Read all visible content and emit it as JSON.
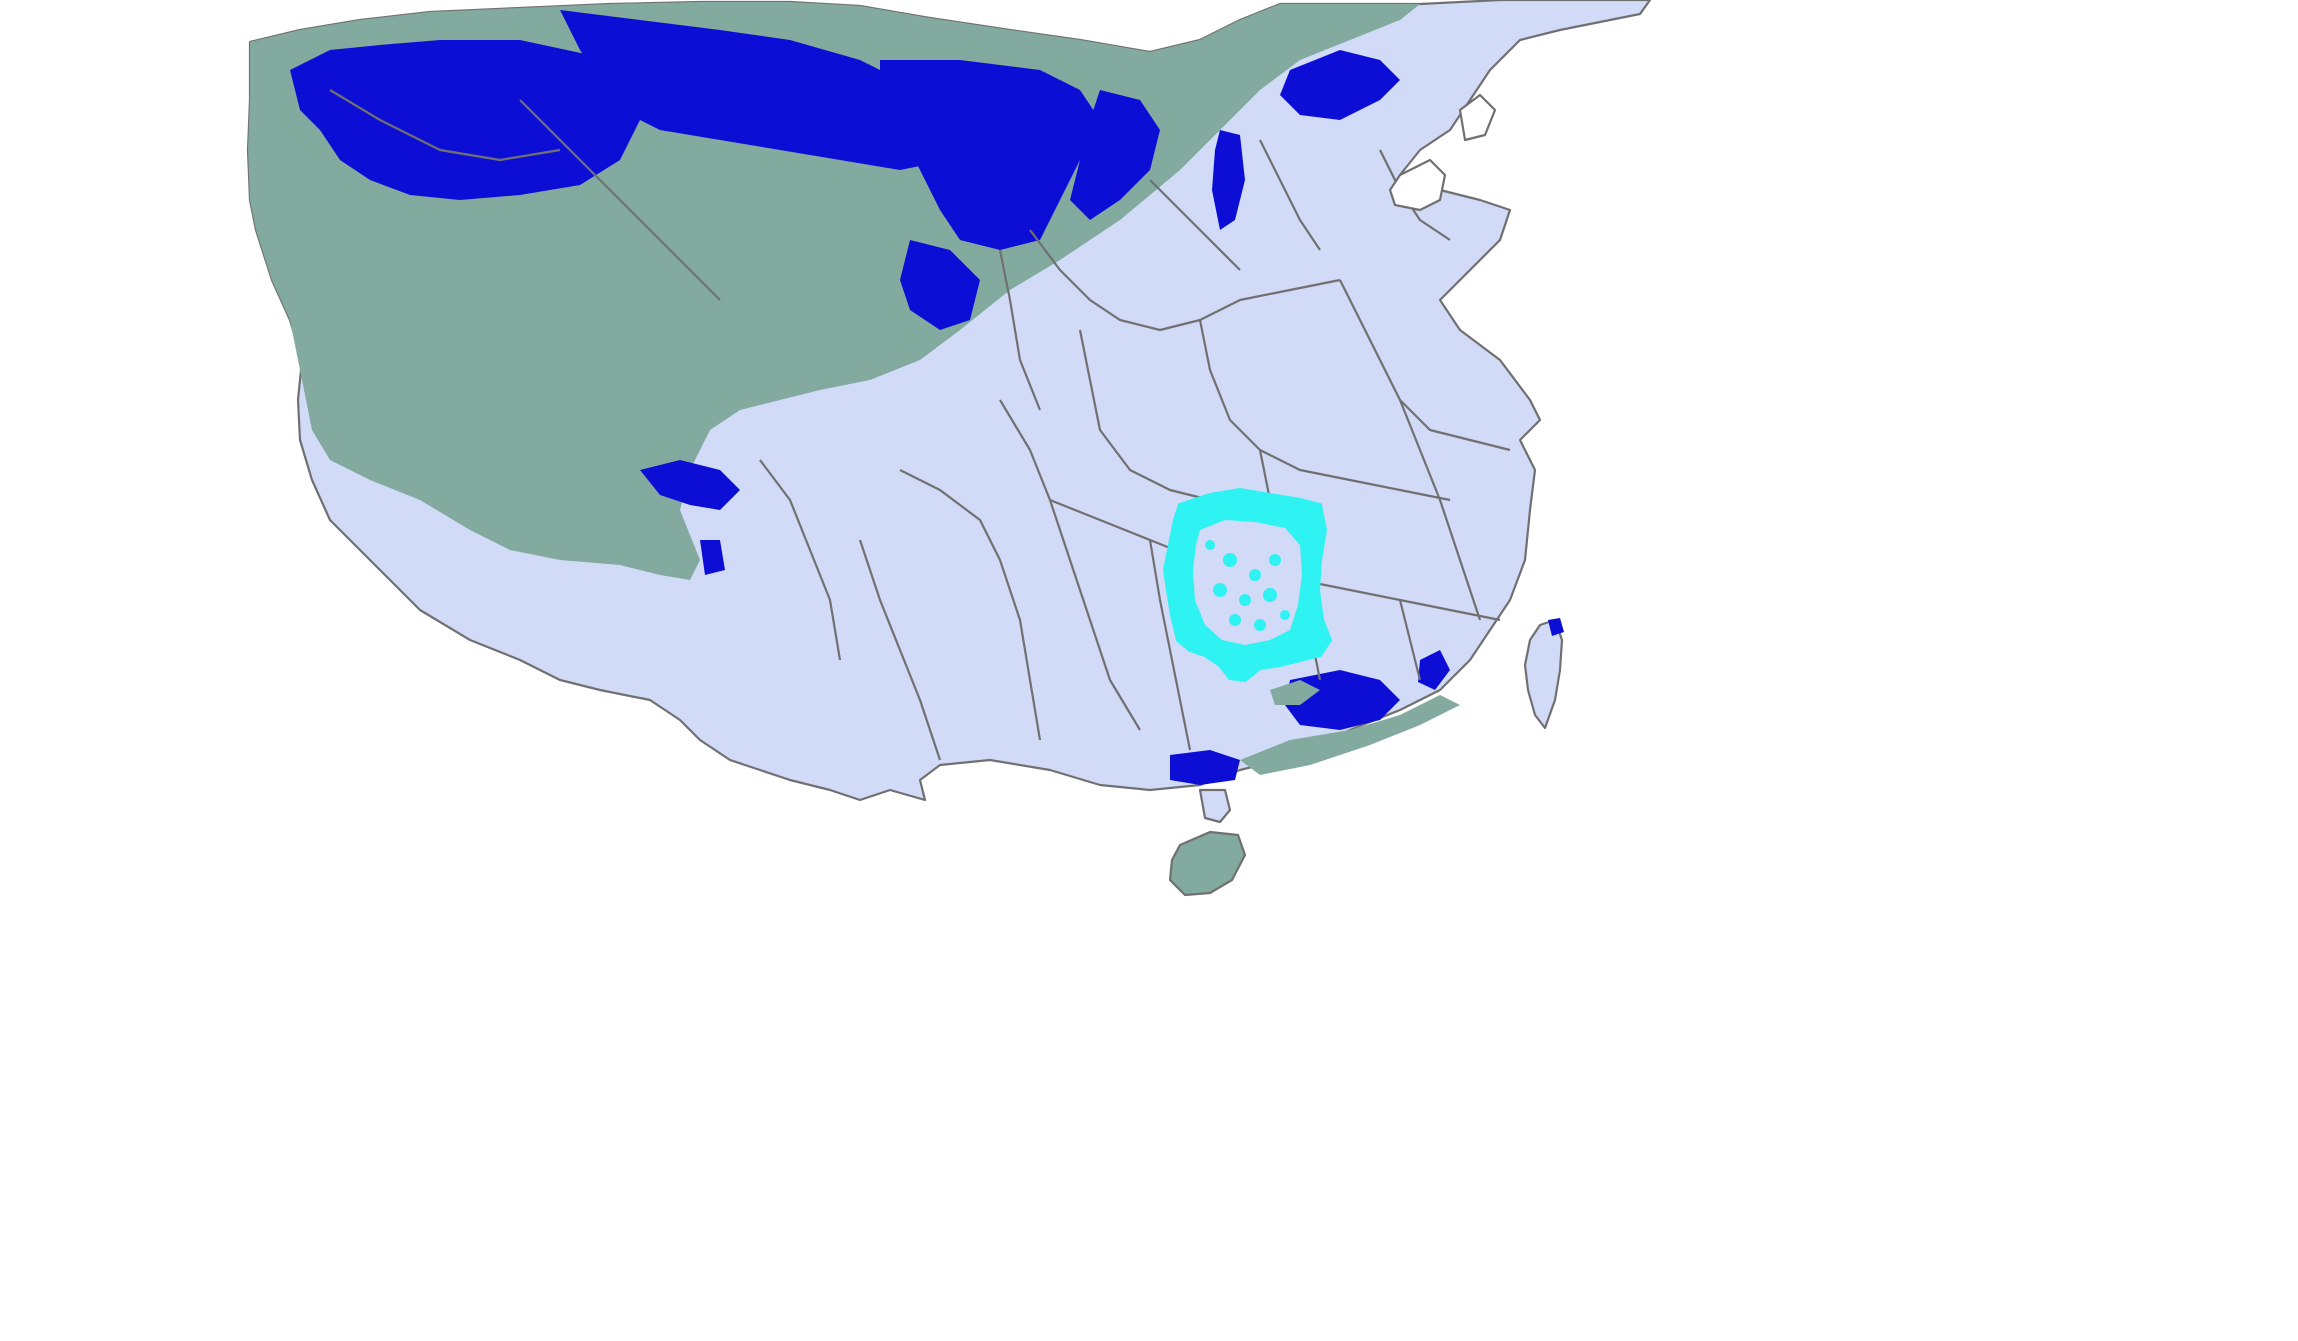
{
  "map": {
    "colors": {
      "background": "#ffffff",
      "land": "#d1dbf7",
      "class_green": "#83aa9e",
      "class_blue": "#0c0ed6",
      "highlight": "#2ff2f2",
      "boundary": "#707070"
    },
    "classes": [
      "land",
      "class_green",
      "class_blue",
      "highlight"
    ]
  }
}
